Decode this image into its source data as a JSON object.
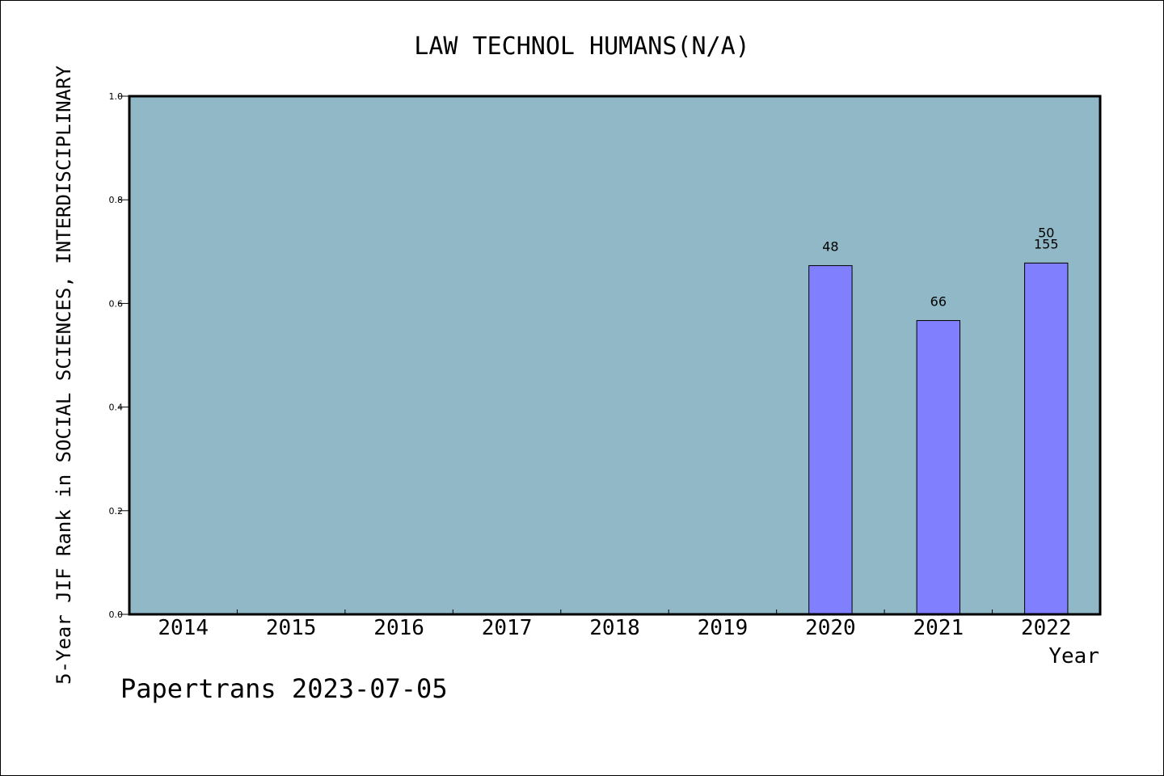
{
  "chart_data": {
    "type": "bar",
    "title": "LAW TECHNOL HUMANS(N/A)",
    "xlabel": "Year",
    "ylabel": "5-Year JIF Rank in SOCIAL SCIENCES, INTERDISCIPLINARY",
    "categories": [
      "2014",
      "2015",
      "2016",
      "2017",
      "2018",
      "2019",
      "2020",
      "2021",
      "2022"
    ],
    "values": [
      null,
      null,
      null,
      null,
      null,
      null,
      0.673,
      0.567,
      0.678
    ],
    "bar_labels": [
      [],
      [],
      [],
      [],
      [],
      [],
      [
        "48"
      ],
      [
        "66"
      ],
      [
        "50",
        "155"
      ]
    ],
    "ylim": [
      0,
      1.0
    ],
    "yticks": [
      "0.0",
      "0.2",
      "0.4",
      "0.6",
      "0.8",
      "1.0"
    ],
    "grid": false,
    "legend": "none",
    "colors": {
      "plot_background": "#90b8c6",
      "bar_fill": "#8080ff",
      "bar_edge": "#000000",
      "axis": "#000000"
    }
  },
  "footer": {
    "source_text": "Papertrans 2023-07-05"
  }
}
